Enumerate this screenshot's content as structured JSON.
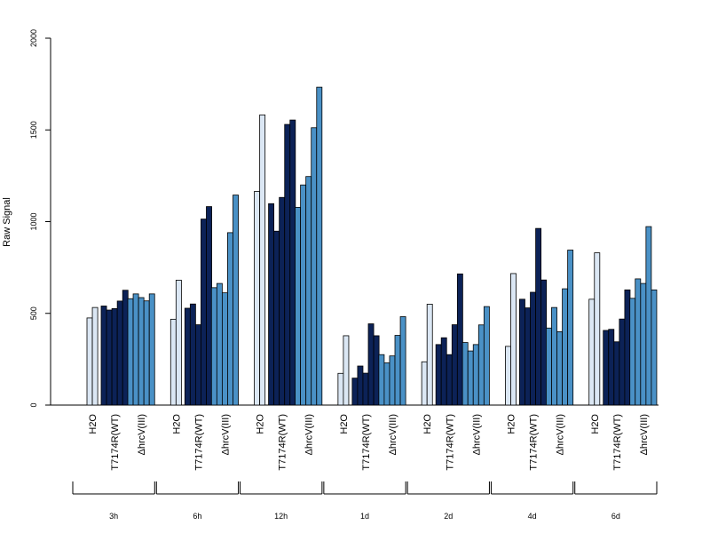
{
  "chart_data": {
    "type": "bar",
    "ylabel": "Raw Signal",
    "ylim": [
      0,
      2000
    ],
    "yticks": [
      "0",
      "500",
      "1000",
      "1500",
      "2000"
    ],
    "treatment_labels": [
      "H2O",
      "T7174R(WT)",
      "ΔhrcV(III)"
    ],
    "colors": {
      "H2O": "#dbe7f4",
      "T7174R(WT)": "#0c2257",
      "ΔhrcV(III)": "#4a91c6"
    },
    "timepoints": [
      {
        "name": "3h",
        "H2O": [
          475,
          532
        ],
        "T7174R(WT)": [
          540,
          518,
          526,
          567,
          626
        ],
        "ΔhrcV(III)": [
          580,
          606,
          586,
          568,
          606
        ]
      },
      {
        "name": "6h",
        "H2O": [
          468,
          681
        ],
        "T7174R(WT)": [
          528,
          551,
          438,
          1014,
          1082
        ],
        "ΔhrcV(III)": [
          640,
          663,
          612,
          940,
          1145
        ]
      },
      {
        "name": "12h",
        "H2O": [
          1165,
          1582
        ],
        "T7174R(WT)": [
          1098,
          948,
          1132,
          1530,
          1554
        ],
        "ΔhrcV(III)": [
          1078,
          1200,
          1246,
          1512,
          1733
        ]
      },
      {
        "name": "1d",
        "H2O": [
          173,
          378
        ],
        "T7174R(WT)": [
          147,
          213,
          174,
          443,
          378
        ],
        "ΔhrcV(III)": [
          275,
          230,
          268,
          380,
          482
        ]
      },
      {
        "name": "2d",
        "H2O": [
          236,
          550
        ],
        "T7174R(WT)": [
          330,
          367,
          275,
          438,
          715
        ],
        "ΔhrcV(III)": [
          341,
          295,
          330,
          437,
          537
        ]
      },
      {
        "name": "4d",
        "H2O": [
          320,
          717
        ],
        "T7174R(WT)": [
          577,
          530,
          615,
          963,
          682
        ],
        "ΔhrcV(III)": [
          420,
          532,
          400,
          634,
          845
        ]
      },
      {
        "name": "6d",
        "H2O": [
          577,
          830
        ],
        "T7174R(WT)": [
          407,
          413,
          345,
          469,
          628
        ],
        "ΔhrcV(III)": [
          582,
          688,
          663,
          973,
          628
        ]
      }
    ]
  }
}
